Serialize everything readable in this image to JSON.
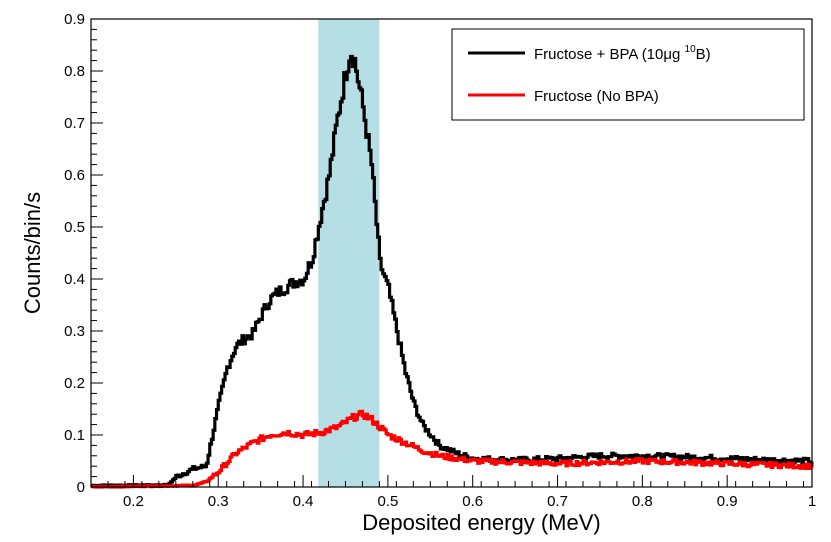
{
  "chart_data": {
    "type": "line",
    "title": "",
    "xlabel": "Deposited energy (MeV)",
    "ylabel": "Counts/bin/s",
    "xlim": [
      0.15,
      1.0
    ],
    "ylim": [
      0,
      0.9
    ],
    "x_ticks": [
      "0.2",
      "0.3",
      "0.4",
      "0.5",
      "0.6",
      "0.7",
      "0.8",
      "0.9",
      "1"
    ],
    "y_ticks": [
      "0",
      "0.1",
      "0.2",
      "0.3",
      "0.4",
      "0.5",
      "0.6",
      "0.7",
      "0.8",
      "0.9"
    ],
    "shaded_region": {
      "x_range": [
        0.418,
        0.49
      ],
      "color": "#a8d8e0"
    },
    "legend": {
      "position": "top-right",
      "entries": [
        {
          "text": "Fructose + BPA (10μg ",
          "sup": "10",
          "suffix": "B)",
          "color": "#000000"
        },
        {
          "text": "Fructose (No BPA)",
          "color": "#ff0000"
        }
      ]
    },
    "series": [
      {
        "name": "Fructose + BPA (10μg 10B)",
        "color": "#000000",
        "points": [
          [
            0.15,
            0.003
          ],
          [
            0.24,
            0.004
          ],
          [
            0.25,
            0.02
          ],
          [
            0.27,
            0.035
          ],
          [
            0.285,
            0.04
          ],
          [
            0.29,
            0.08
          ],
          [
            0.3,
            0.16
          ],
          [
            0.31,
            0.23
          ],
          [
            0.32,
            0.27
          ],
          [
            0.33,
            0.285
          ],
          [
            0.34,
            0.295
          ],
          [
            0.35,
            0.33
          ],
          [
            0.36,
            0.36
          ],
          [
            0.37,
            0.375
          ],
          [
            0.38,
            0.385
          ],
          [
            0.39,
            0.395
          ],
          [
            0.4,
            0.4
          ],
          [
            0.41,
            0.44
          ],
          [
            0.42,
            0.52
          ],
          [
            0.43,
            0.6
          ],
          [
            0.44,
            0.71
          ],
          [
            0.45,
            0.8
          ],
          [
            0.455,
            0.84
          ],
          [
            0.46,
            0.82
          ],
          [
            0.47,
            0.73
          ],
          [
            0.48,
            0.62
          ],
          [
            0.49,
            0.43
          ],
          [
            0.5,
            0.38
          ],
          [
            0.51,
            0.3
          ],
          [
            0.52,
            0.22
          ],
          [
            0.53,
            0.16
          ],
          [
            0.54,
            0.12
          ],
          [
            0.55,
            0.1
          ],
          [
            0.56,
            0.08
          ],
          [
            0.58,
            0.065
          ],
          [
            0.6,
            0.055
          ],
          [
            0.65,
            0.052
          ],
          [
            0.7,
            0.055
          ],
          [
            0.75,
            0.06
          ],
          [
            0.8,
            0.06
          ],
          [
            0.85,
            0.058
          ],
          [
            0.9,
            0.055
          ],
          [
            0.95,
            0.052
          ],
          [
            1.0,
            0.05
          ]
        ]
      },
      {
        "name": "Fructose (No BPA)",
        "color": "#ff0000",
        "points": [
          [
            0.15,
            0.0
          ],
          [
            0.27,
            0.003
          ],
          [
            0.285,
            0.01
          ],
          [
            0.3,
            0.03
          ],
          [
            0.32,
            0.065
          ],
          [
            0.34,
            0.085
          ],
          [
            0.36,
            0.1
          ],
          [
            0.38,
            0.105
          ],
          [
            0.4,
            0.1
          ],
          [
            0.42,
            0.105
          ],
          [
            0.44,
            0.115
          ],
          [
            0.46,
            0.135
          ],
          [
            0.47,
            0.14
          ],
          [
            0.48,
            0.13
          ],
          [
            0.49,
            0.115
          ],
          [
            0.5,
            0.1
          ],
          [
            0.52,
            0.085
          ],
          [
            0.54,
            0.07
          ],
          [
            0.56,
            0.06
          ],
          [
            0.58,
            0.055
          ],
          [
            0.6,
            0.05
          ],
          [
            0.7,
            0.045
          ],
          [
            0.8,
            0.05
          ],
          [
            0.9,
            0.045
          ],
          [
            1.0,
            0.04
          ]
        ]
      }
    ]
  }
}
